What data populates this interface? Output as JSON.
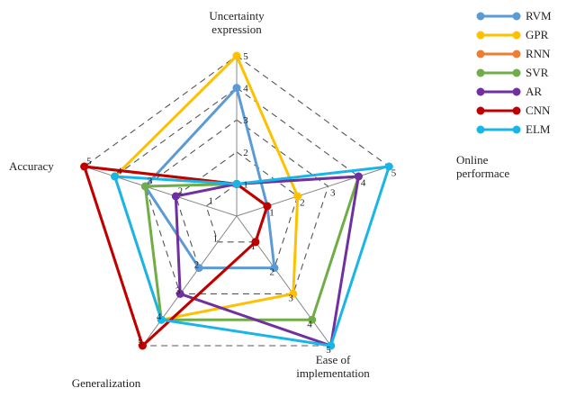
{
  "chart_data": {
    "type": "radar",
    "axes": [
      [
        "Uncertainty",
        "expression"
      ],
      [
        "Online",
        "performace"
      ],
      [
        "Ease of",
        "implementation"
      ],
      [
        "Generalization"
      ],
      [
        "Accuracy"
      ]
    ],
    "rlim": [
      0,
      5
    ],
    "ticks": [
      1,
      2,
      3,
      4,
      5
    ],
    "grid": true,
    "legend_position": "top-right",
    "series": [
      {
        "name": "RVM",
        "color": "#5B9BD5",
        "values": [
          4,
          1,
          2,
          2,
          3
        ]
      },
      {
        "name": "GPR",
        "color": "#FFC000",
        "values": [
          5,
          2,
          3,
          4,
          4
        ]
      },
      {
        "name": "RNN",
        "color": "#ED7D31",
        "values": [
          1,
          1,
          1,
          5,
          5
        ]
      },
      {
        "name": "SVR",
        "color": "#70AD47",
        "values": [
          1,
          4,
          4,
          4,
          3
        ]
      },
      {
        "name": "AR",
        "color": "#7030A0",
        "values": [
          1,
          4,
          5,
          3,
          2
        ]
      },
      {
        "name": "CNN",
        "color": "#C00000",
        "values": [
          1,
          1,
          1,
          5,
          5
        ]
      },
      {
        "name": "ELM",
        "color": "#18B5E8",
        "values": [
          1,
          5,
          5,
          4,
          4
        ]
      }
    ]
  }
}
